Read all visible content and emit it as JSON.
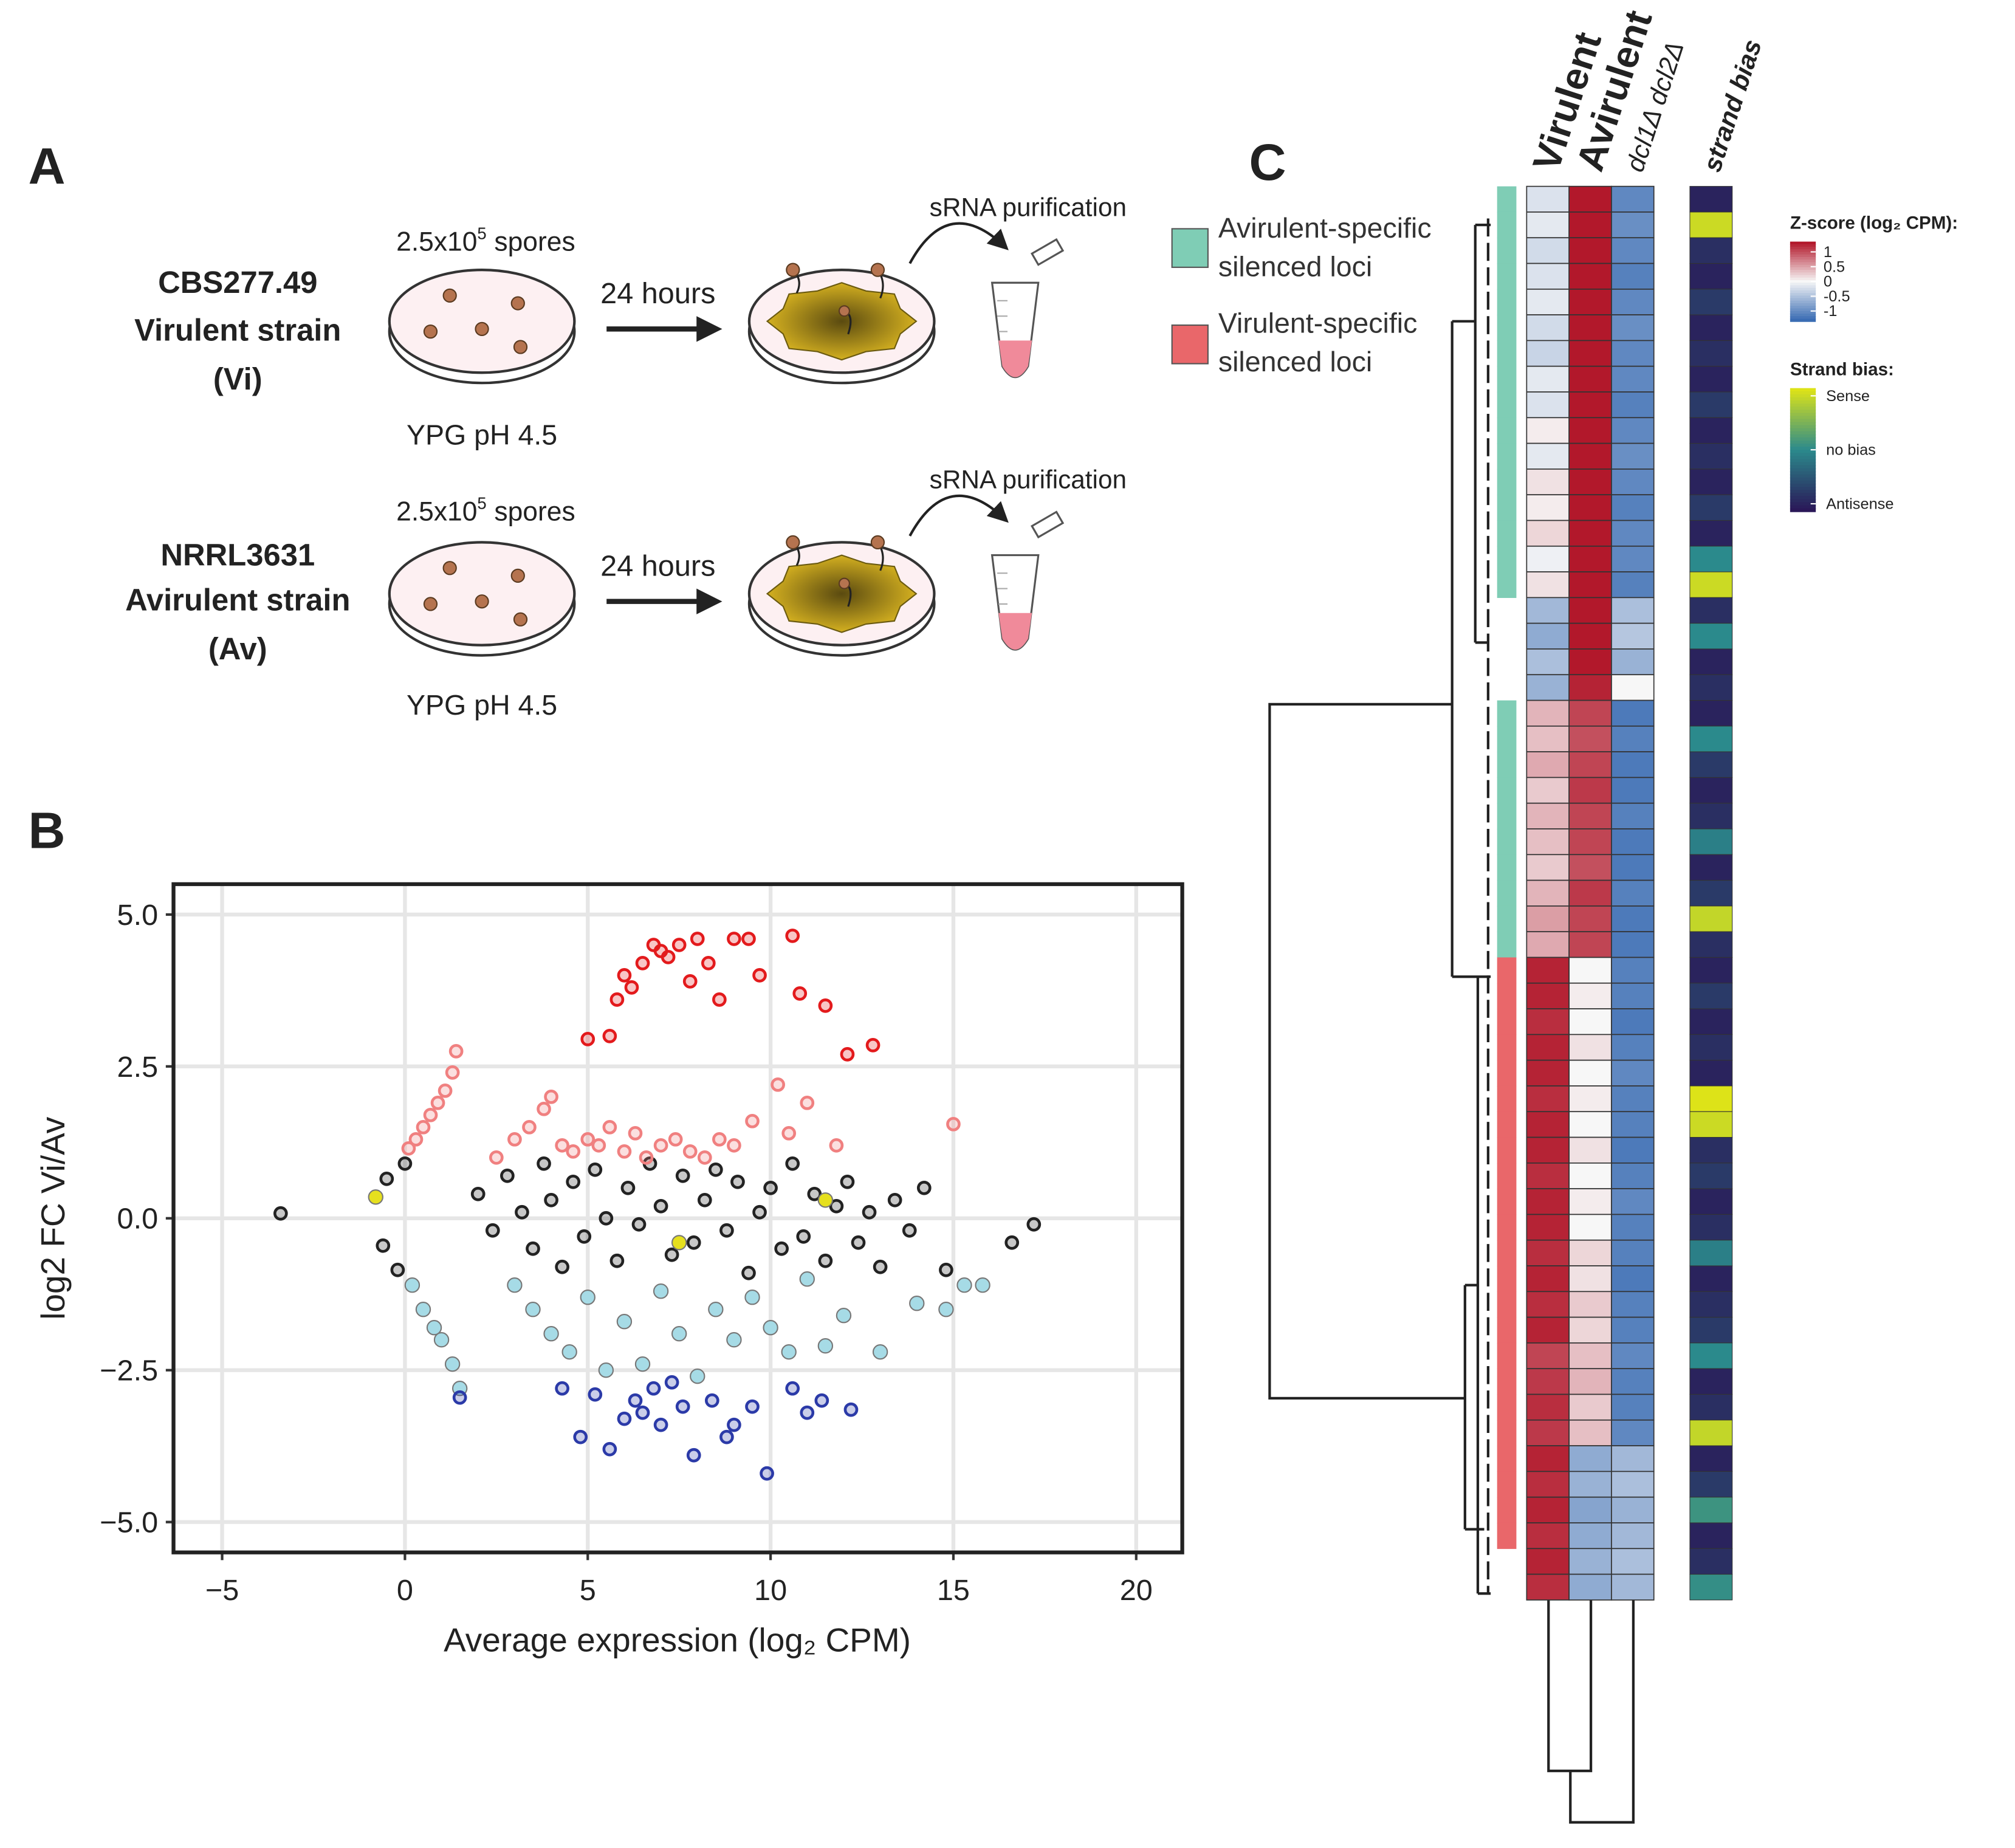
{
  "panel_labels": {
    "a": "A",
    "b": "B",
    "c": "C"
  },
  "panel_a": {
    "strains": [
      {
        "name": "CBS277.49",
        "type": "Virulent strain",
        "abbr": "(Vi)"
      },
      {
        "name": "NRRL3631",
        "type": "Avirulent strain",
        "abbr": "(Av)"
      }
    ],
    "spores_base": "2.5x10",
    "spores_exp": "5",
    "spores_unit": "spores",
    "medium": "YPG pH 4.5",
    "time": "24 hours",
    "step": "sRNA purification"
  },
  "chart_data": [
    {
      "type": "scatter",
      "xlabel": "Average expression (log₂ CPM)",
      "ylabel": "log2 FC Vi/Av",
      "xlim": [
        -6.33,
        21.26
      ],
      "ylim": [
        -5.5,
        5.5
      ],
      "xticks": [
        {
          "value": -5,
          "label": "−5"
        },
        0,
        5,
        10,
        15,
        20
      ],
      "yticks": [
        {
          "value": 5,
          "label": "5.0"
        },
        2.5,
        {
          "value": 0,
          "label": "0.0"
        },
        {
          "value": -2.5,
          "label": "−2.5"
        },
        {
          "value": -5,
          "label": "−5.0"
        }
      ],
      "grid": true,
      "series": [
        {
          "color": "#222222",
          "filled": false,
          "x": [
            2.0,
            2.4,
            2.8,
            3.2,
            3.5,
            3.8,
            4.0,
            4.3,
            4.6,
            4.9,
            5.2,
            5.5,
            5.8,
            6.1,
            6.4,
            6.7,
            7.0,
            7.3,
            7.6,
            7.9,
            8.2,
            8.5,
            8.8,
            9.1,
            9.4,
            9.7,
            10.0,
            10.3,
            10.6,
            10.9,
            11.2,
            11.5,
            11.8,
            12.1,
            12.4,
            12.7,
            13.0,
            13.4,
            13.8,
            14.2,
            -3.4,
            -0.5,
            -0.6,
            -0.2,
            0.0,
            16.6,
            17.2,
            14.8
          ],
          "values": [
            0.4,
            -0.2,
            0.7,
            0.1,
            -0.5,
            0.9,
            0.3,
            -0.8,
            0.6,
            -0.3,
            0.8,
            0.0,
            -0.7,
            0.5,
            -0.1,
            0.9,
            0.2,
            -0.6,
            0.7,
            -0.4,
            0.3,
            0.8,
            -0.2,
            0.6,
            -0.9,
            0.1,
            0.5,
            -0.5,
            0.9,
            -0.3,
            0.4,
            -0.7,
            0.2,
            0.6,
            -0.4,
            0.1,
            -0.8,
            0.3,
            -0.2,
            0.5,
            0.08,
            0.65,
            -0.45,
            -0.85,
            0.9,
            -0.4,
            -0.1,
            -0.85
          ]
        },
        {
          "color": "#e31a1c",
          "filled": false,
          "x": [
            5,
            5.6,
            5.8,
            6.0,
            6.2,
            6.5,
            6.8,
            7.0,
            7.2,
            7.5,
            7.8,
            8.0,
            8.3,
            8.6,
            9.0,
            9.4,
            9.7,
            10.6,
            10.8,
            11.5,
            12.1,
            12.8
          ],
          "values": [
            2.95,
            3.0,
            3.6,
            4.0,
            3.8,
            4.2,
            4.5,
            4.4,
            4.3,
            4.5,
            3.9,
            4.6,
            4.2,
            3.6,
            4.6,
            4.6,
            4.0,
            4.65,
            3.7,
            3.5,
            2.7,
            2.85
          ]
        },
        {
          "color": "#f08080",
          "filled": false,
          "x": [
            0.1,
            0.3,
            0.5,
            0.7,
            0.9,
            1.1,
            1.3,
            1.4,
            2.5,
            3.0,
            3.4,
            3.8,
            4.0,
            4.3,
            4.6,
            5.0,
            5.3,
            5.6,
            6.0,
            6.3,
            6.6,
            7.0,
            7.4,
            7.8,
            8.2,
            8.6,
            9.0,
            9.5,
            10.2,
            10.5,
            11.0,
            11.8,
            15.0
          ],
          "values": [
            1.15,
            1.3,
            1.5,
            1.7,
            1.9,
            2.1,
            2.4,
            2.75,
            1.0,
            1.3,
            1.5,
            1.8,
            2.0,
            1.2,
            1.1,
            1.3,
            1.2,
            1.5,
            1.1,
            1.4,
            1.0,
            1.2,
            1.3,
            1.1,
            1.0,
            1.3,
            1.2,
            1.6,
            2.2,
            1.4,
            1.9,
            1.2,
            1.55
          ]
        },
        {
          "color": "#a6dbe6",
          "filled": true,
          "x": [
            0.2,
            0.5,
            0.8,
            1.0,
            1.3,
            1.5,
            3.0,
            3.5,
            4.0,
            4.5,
            5.0,
            5.5,
            6.0,
            6.5,
            7.0,
            7.5,
            8.0,
            8.5,
            9.0,
            9.5,
            10.0,
            10.5,
            11.0,
            11.5,
            12.0,
            13.0,
            14.0,
            14.8,
            15.3,
            15.8
          ],
          "values": [
            -1.1,
            -1.5,
            -1.8,
            -2.0,
            -2.4,
            -2.8,
            -1.1,
            -1.5,
            -1.9,
            -2.2,
            -1.3,
            -2.5,
            -1.7,
            -2.4,
            -1.2,
            -1.9,
            -2.6,
            -1.5,
            -2.0,
            -1.3,
            -1.8,
            -2.2,
            -1.0,
            -2.1,
            -1.6,
            -2.2,
            -1.4,
            -1.5,
            -1.1,
            -1.1
          ]
        },
        {
          "color": "#2b3aa8",
          "filled": false,
          "x": [
            1.5,
            4.3,
            4.8,
            5.2,
            5.6,
            6.0,
            6.3,
            6.5,
            6.8,
            7.0,
            7.3,
            7.6,
            7.9,
            8.4,
            8.8,
            9.0,
            9.5,
            9.9,
            10.6,
            11.0,
            11.4,
            12.2
          ],
          "values": [
            -2.95,
            -2.8,
            -3.6,
            -2.9,
            -3.8,
            -3.3,
            -3.0,
            -3.2,
            -2.8,
            -3.4,
            -2.7,
            -3.1,
            -3.9,
            -3.0,
            -3.6,
            -3.4,
            -3.1,
            -4.2,
            -2.8,
            -3.2,
            -3.0,
            -3.15
          ]
        },
        {
          "color": "#e6e01e",
          "filled": true,
          "x": [
            -0.8,
            7.5,
            11.5
          ],
          "values": [
            0.35,
            -0.4,
            0.3
          ]
        }
      ]
    },
    {
      "type": "heatmap",
      "columns": [
        "Virulent",
        "Avirulent",
        "dcl1Δ dcl2Δ"
      ],
      "strand_label": "strand bias",
      "groups": [
        {
          "name": "Avirulent-specific silenced loci",
          "color": "#7fcdb5"
        },
        {
          "name": "Virulent-specific silenced loci",
          "color": "#e9676a"
        }
      ],
      "ztitle": "Z-score (log₂ CPM):",
      "zlim": [
        -1,
        1
      ],
      "zticks": [
        1,
        0.5,
        0,
        -0.5,
        -1
      ],
      "colors": [
        "#3a6cb3",
        "#f7f7f7",
        "#b2182b"
      ],
      "strand_title": "Strand bias:",
      "strand_lim": [
        -1,
        1
      ],
      "strand_ticks": [
        {
          "value": 1,
          "label": "Sense"
        },
        {
          "value": 0,
          "label": "no bias"
        },
        {
          "value": -1,
          "label": "Antisense"
        }
      ],
      "strand_colors": [
        "#2a1858",
        "#2b8a8c",
        "#dde318"
      ],
      "values": [
        [
          -0.15,
          1,
          -0.8
        ],
        [
          -0.1,
          1,
          -0.75
        ],
        [
          -0.2,
          1,
          -0.8
        ],
        [
          -0.15,
          1,
          -0.85
        ],
        [
          -0.1,
          1,
          -0.8
        ],
        [
          -0.2,
          1,
          -0.75
        ],
        [
          -0.25,
          1,
          -0.8
        ],
        [
          -0.1,
          1,
          -0.8
        ],
        [
          -0.15,
          1,
          -0.85
        ],
        [
          0.05,
          1,
          -0.8
        ],
        [
          -0.1,
          1,
          -0.75
        ],
        [
          0.1,
          1,
          -0.8
        ],
        [
          0.05,
          1,
          -0.85
        ],
        [
          0.15,
          1,
          -0.8
        ],
        [
          -0.05,
          1,
          -0.8
        ],
        [
          0.1,
          1,
          -0.85
        ],
        [
          -0.45,
          1,
          -0.4
        ],
        [
          -0.55,
          1,
          -0.35
        ],
        [
          -0.4,
          1,
          -0.5
        ],
        [
          -0.5,
          0.95,
          0
        ],
        [
          0.3,
          0.8,
          -0.9
        ],
        [
          0.25,
          0.75,
          -0.85
        ],
        [
          0.35,
          0.8,
          -0.9
        ],
        [
          0.2,
          0.85,
          -0.9
        ],
        [
          0.3,
          0.8,
          -0.85
        ],
        [
          0.25,
          0.8,
          -0.9
        ],
        [
          0.2,
          0.75,
          -0.9
        ],
        [
          0.3,
          0.85,
          -0.85
        ],
        [
          0.4,
          0.8,
          -0.9
        ],
        [
          0.35,
          0.8,
          -0.9
        ],
        [
          0.95,
          0,
          -0.85
        ],
        [
          0.95,
          0.05,
          -0.85
        ],
        [
          0.9,
          0,
          -0.9
        ],
        [
          0.95,
          0.1,
          -0.85
        ],
        [
          0.95,
          0,
          -0.8
        ],
        [
          0.9,
          0.05,
          -0.85
        ],
        [
          0.95,
          0,
          -0.85
        ],
        [
          0.95,
          0.1,
          -0.9
        ],
        [
          0.9,
          0,
          -0.85
        ],
        [
          0.95,
          0.05,
          -0.8
        ],
        [
          0.95,
          0,
          -0.85
        ],
        [
          0.9,
          0.15,
          -0.85
        ],
        [
          0.95,
          0.1,
          -0.9
        ],
        [
          0.9,
          0.2,
          -0.85
        ],
        [
          0.95,
          0.15,
          -0.85
        ],
        [
          0.8,
          0.25,
          -0.8
        ],
        [
          0.85,
          0.3,
          -0.85
        ],
        [
          0.9,
          0.2,
          -0.85
        ],
        [
          0.85,
          0.25,
          -0.8
        ],
        [
          0.95,
          -0.55,
          -0.45
        ],
        [
          0.9,
          -0.5,
          -0.4
        ],
        [
          0.95,
          -0.6,
          -0.5
        ],
        [
          0.9,
          -0.55,
          -0.45
        ],
        [
          0.95,
          -0.5,
          -0.4
        ],
        [
          0.9,
          -0.55,
          -0.45
        ]
      ],
      "strand_values": [
        -0.9,
        0.9,
        -0.8,
        -0.9,
        -0.7,
        -0.9,
        -0.8,
        -0.9,
        -0.7,
        -0.9,
        -0.8,
        -0.9,
        -0.7,
        -0.9,
        0.0,
        0.9,
        -0.8,
        0.0,
        -0.9,
        -0.8,
        -0.9,
        0.0,
        -0.7,
        -0.9,
        -0.8,
        -0.1,
        -0.9,
        -0.7,
        0.85,
        -0.8,
        -0.9,
        -0.7,
        -0.9,
        -0.8,
        -0.9,
        1.0,
        0.9,
        -0.8,
        -0.7,
        -0.9,
        -0.8,
        -0.1,
        -0.9,
        -0.8,
        -0.7,
        0.0,
        -0.9,
        -0.8,
        0.85,
        -0.9,
        -0.7,
        0.1,
        -0.9,
        -0.8,
        0.05
      ],
      "row_groups": [
        0,
        0,
        0,
        0,
        0,
        0,
        0,
        0,
        0,
        0,
        0,
        0,
        0,
        0,
        0,
        0,
        null,
        null,
        null,
        null,
        0,
        0,
        0,
        0,
        0,
        0,
        0,
        0,
        0,
        0,
        1,
        1,
        1,
        1,
        1,
        1,
        1,
        1,
        1,
        1,
        1,
        1,
        1,
        1,
        1,
        1,
        1,
        1,
        1,
        1,
        1,
        1,
        1,
        null,
        null
      ]
    }
  ]
}
